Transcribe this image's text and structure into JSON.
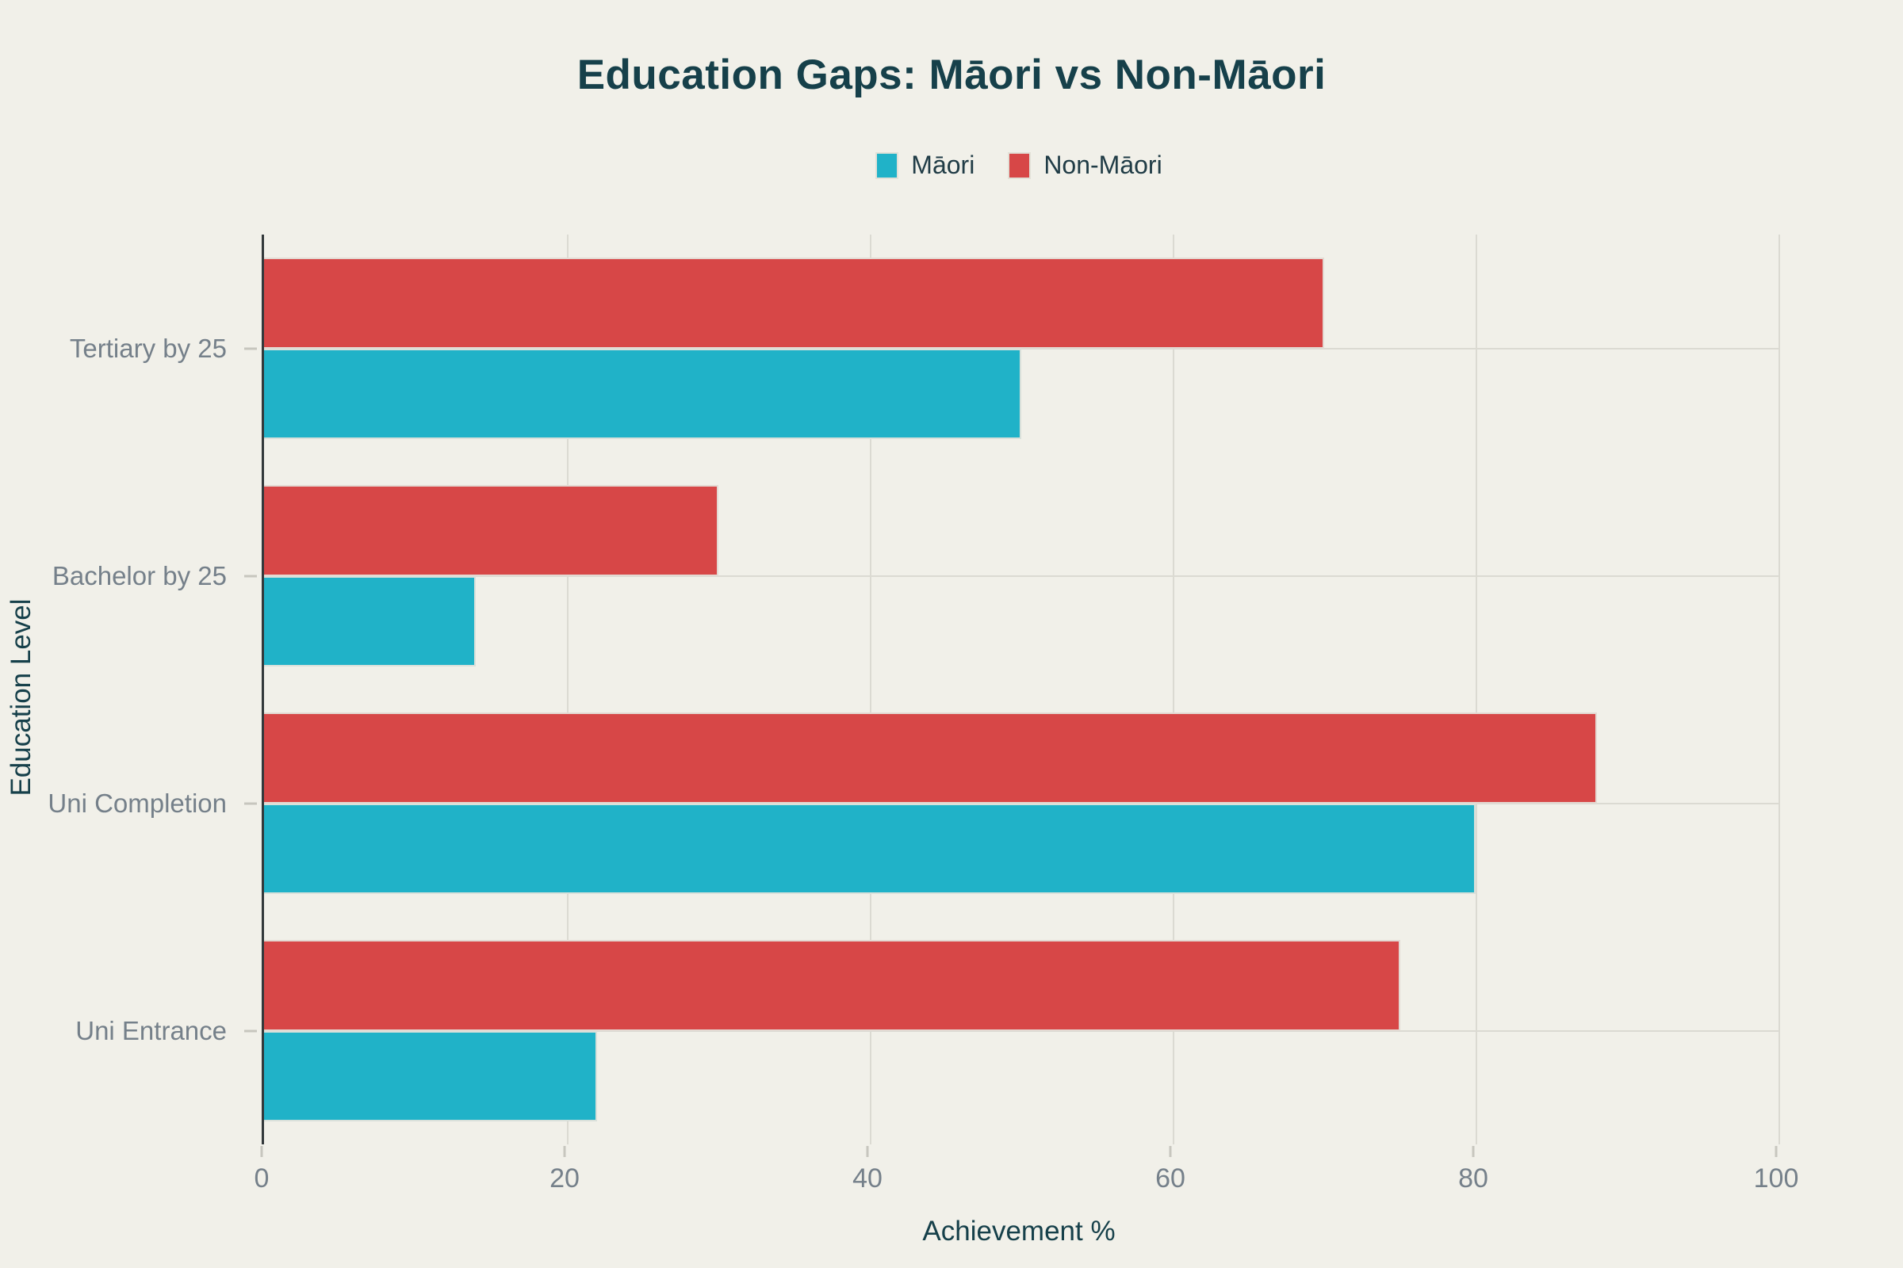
{
  "title": "Education Gaps: Māori vs Non-Māori",
  "colors": {
    "background": "#F1F0E9",
    "title_text": "#16404A",
    "axis_line": "#33393B",
    "gridline": "#DBDAD2",
    "tick_text": "#75808A",
    "maori": "#20B2C8",
    "non_maori": "#D74747"
  },
  "chart_data": {
    "type": "bar",
    "orientation": "horizontal",
    "title": "Education Gaps: Māori vs Non-Māori",
    "xlabel": "Achievement %",
    "ylabel": "Education Level",
    "xlim": [
      0,
      100
    ],
    "xticks": [
      0,
      20,
      40,
      60,
      80,
      100
    ],
    "grid": true,
    "legend_position": "top-center",
    "categories_top_to_bottom": [
      "Tertiary by 25",
      "Bachelor by 25",
      "Uni Completion",
      "Uni Entrance"
    ],
    "series": [
      {
        "name": "Māori",
        "color": "#20B2C8",
        "values_top_to_bottom": [
          50,
          14,
          80,
          22
        ]
      },
      {
        "name": "Non-Māori",
        "color": "#D74747",
        "values_top_to_bottom": [
          70,
          30,
          88,
          75
        ]
      }
    ],
    "bar_order_within_group_top_to_bottom": [
      "Non-Māori",
      "Māori"
    ]
  }
}
